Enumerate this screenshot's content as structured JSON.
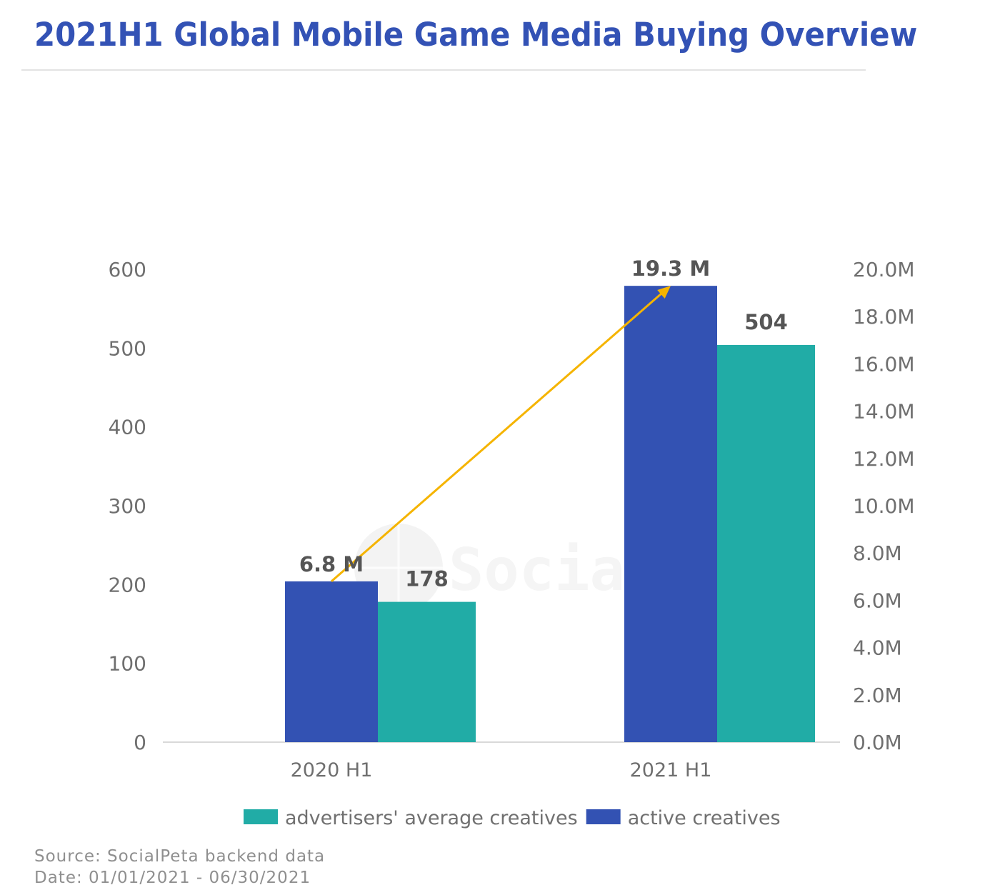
{
  "header": {
    "title": "2021H1 Global Mobile Game Media Buying Overview"
  },
  "footer": {
    "source": "Source: SocialPeta backend data",
    "date": "Date: 01/01/2021 - 06/30/2021"
  },
  "watermark": {
    "text": "SocialPeta"
  },
  "chart_data": {
    "type": "bar",
    "title": "2021H1 Global Mobile Game Media Buying Overview",
    "categories": [
      "2020 H1",
      "2021 H1"
    ],
    "series": [
      {
        "name": "active creatives",
        "axis": "right",
        "values": [
          6.8,
          19.3
        ],
        "unit": "M",
        "labels": [
          "6.8 M",
          "19.3 M"
        ],
        "color": "#3352b3"
      },
      {
        "name": "advertisers' average creatives",
        "axis": "left",
        "values": [
          178,
          504
        ],
        "labels": [
          "178",
          "504"
        ],
        "color": "#21aca6"
      }
    ],
    "left_axis": {
      "ylim": [
        0,
        600
      ],
      "ticks": [
        "0",
        "100",
        "200",
        "300",
        "400",
        "500",
        "600"
      ],
      "tick_values": [
        0,
        100,
        200,
        300,
        400,
        500,
        600
      ]
    },
    "right_axis": {
      "ylim": [
        0,
        20
      ],
      "ticks": [
        "0.0M",
        "2.0M",
        "4.0M",
        "6.0M",
        "8.0M",
        "10.0M",
        "12.0M",
        "14.0M",
        "16.0M",
        "18.0M",
        "20.0M"
      ],
      "tick_values": [
        0,
        2,
        4,
        6,
        8,
        10,
        12,
        14,
        16,
        18,
        20
      ]
    },
    "legend": {
      "placement": "bottom",
      "entries": [
        {
          "label": "advertisers' average creatives",
          "color": "#21aca6"
        },
        {
          "label": "active creatives",
          "color": "#3352b3"
        }
      ]
    },
    "annotation": {
      "type": "arrow",
      "from": "active creatives 2020 H1",
      "to": "active creatives 2021 H1",
      "color": "#f5b400"
    },
    "grid": false,
    "xlabel": "",
    "ylabel": ""
  }
}
